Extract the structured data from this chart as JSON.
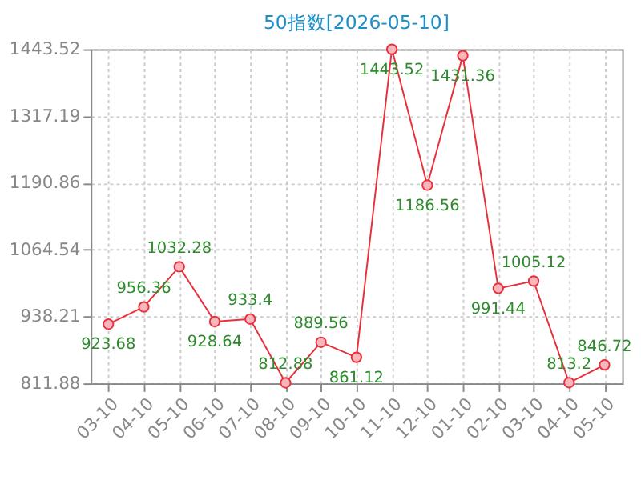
{
  "chart_data": {
    "type": "line",
    "title": "50指数[2026-05-10]",
    "categories": [
      "03-10",
      "04-10",
      "05-10",
      "06-10",
      "07-10",
      "08-10",
      "09-10",
      "10-10",
      "11-10",
      "12-10",
      "01-10",
      "02-10",
      "03-10",
      "04-10",
      "05-10"
    ],
    "series": [
      {
        "color": "#e8303a",
        "values": [
          923.68,
          956.36,
          1032.28,
          928.64,
          933.4,
          812.88,
          889.56,
          861.12,
          1443.52,
          1186.56,
          1431.36,
          991.44,
          1005.12,
          813.2,
          846.72
        ]
      }
    ],
    "ylim": [
      811.88,
      1443.52
    ],
    "yticks": [
      811.88,
      938.21,
      1064.54,
      1190.86,
      1317.19,
      1443.52
    ],
    "grid": true,
    "marker": "circle",
    "data_labels": true
  }
}
